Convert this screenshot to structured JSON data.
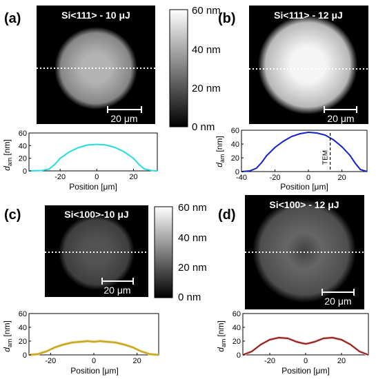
{
  "panels": [
    {
      "label": "(a)",
      "title": "Si<111> - 10 μJ",
      "scale_bar": "20 μm",
      "intensity": 0.7,
      "dip": 0.0
    },
    {
      "label": "(b)",
      "title": "Si<111> - 12 μJ",
      "scale_bar": "20 μm",
      "intensity": 0.96,
      "dip": 0.0
    },
    {
      "label": "(c)",
      "title": "Si<100>-10 μJ",
      "scale_bar": "20 μm",
      "intensity": 0.32,
      "dip": 0.0
    },
    {
      "label": "(d)",
      "title": "Si<100> - 12 μJ",
      "scale_bar": "20 μm",
      "intensity": 0.4,
      "dip": 0.35
    }
  ],
  "colorbars": [
    {
      "ticks": [
        "60 nm",
        "40 nm",
        "20 nm",
        "0 nm"
      ]
    },
    {
      "ticks": [
        "60 nm",
        "40 nm",
        "20 nm",
        "0 nm"
      ]
    }
  ],
  "chart_data": [
    {
      "type": "line",
      "panel": "(a)",
      "color": "#22dde0",
      "xlabel": "Position [μm]",
      "ylabel_main": "d",
      "ylabel_sub": "am",
      "ylabel_unit": "[nm]",
      "xlim": [
        -37,
        33
      ],
      "ylim": [
        0,
        60
      ],
      "xticks": [
        -20,
        0,
        20
      ],
      "yticks": [
        0,
        20,
        40,
        60
      ],
      "x": [
        -37,
        -30,
        -26,
        -23,
        -20,
        -15,
        -10,
        -5,
        0,
        5,
        10,
        15,
        20,
        23,
        26,
        30,
        33
      ],
      "y": [
        0,
        0.5,
        3,
        10,
        20,
        30,
        37,
        41,
        42,
        41,
        37,
        30,
        20,
        10,
        3,
        0.5,
        0
      ]
    },
    {
      "type": "line",
      "panel": "(b)",
      "color": "#1020c8",
      "xlabel": "Position [μm]",
      "ylabel_main": "d",
      "ylabel_sub": "am",
      "ylabel_unit": "[nm]",
      "xlim": [
        -40,
        35
      ],
      "ylim": [
        0,
        60
      ],
      "xticks": [
        -40,
        -20,
        0,
        20
      ],
      "yticks": [
        0,
        20,
        40,
        60
      ],
      "x": [
        -40,
        -35,
        -31,
        -28,
        -25,
        -20,
        -15,
        -10,
        -5,
        0,
        5,
        10,
        15,
        20,
        25,
        28,
        31,
        35
      ],
      "y": [
        0,
        1,
        5,
        13,
        23,
        35,
        44,
        51,
        55,
        57,
        56,
        53,
        46,
        36,
        23,
        12,
        3,
        0
      ],
      "annotation": {
        "label": "TEM",
        "x": 13
      }
    },
    {
      "type": "line",
      "panel": "(c)",
      "color": "#c8a21e",
      "band": "#e8d890",
      "xlabel": "Position [μm]",
      "ylabel_main": "d",
      "ylabel_sub": "am",
      "ylabel_unit": "[nm]",
      "xlim": [
        -30,
        30
      ],
      "ylim": [
        0,
        60
      ],
      "xticks": [
        -20,
        0,
        20
      ],
      "yticks": [
        0,
        20,
        40,
        60
      ],
      "x": [
        -30,
        -26,
        -22,
        -18,
        -14,
        -10,
        -6,
        -3,
        0,
        3,
        6,
        10,
        14,
        18,
        22,
        26,
        30
      ],
      "y": [
        0,
        1,
        5,
        11,
        15,
        18,
        19,
        20,
        19,
        20,
        19,
        18,
        15,
        11,
        5,
        1,
        0
      ]
    },
    {
      "type": "line",
      "panel": "(d)",
      "color": "#8b2212",
      "band": "#f3c4d2",
      "xlabel": "Position [μm]",
      "ylabel_main": "d",
      "ylabel_sub": "am",
      "ylabel_unit": "[nm]",
      "xlim": [
        -35,
        35
      ],
      "ylim": [
        0,
        60
      ],
      "xticks": [
        -20,
        0,
        20
      ],
      "yticks": [
        0,
        20,
        40,
        60
      ],
      "x": [
        -35,
        -30,
        -25,
        -20,
        -15,
        -10,
        -5,
        -2,
        0,
        2,
        5,
        10,
        15,
        20,
        25,
        30,
        35
      ],
      "y": [
        0,
        5,
        15,
        22,
        25,
        24,
        19,
        17,
        16,
        17,
        19,
        24,
        25,
        22,
        15,
        5,
        0
      ]
    }
  ]
}
